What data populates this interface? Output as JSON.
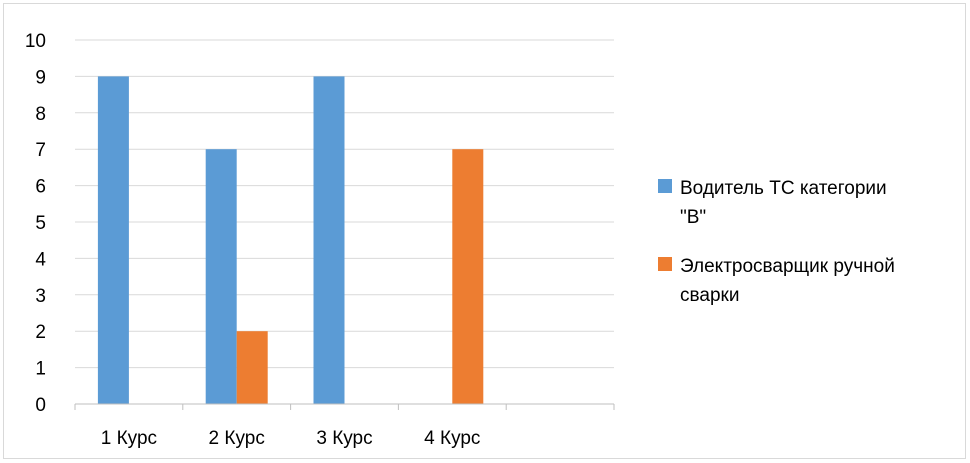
{
  "chart_data": {
    "type": "bar",
    "categories": [
      "1 Курс",
      "2 Курс",
      "3 Курс",
      "4 Курс",
      ""
    ],
    "series": [
      {
        "name": "Водитель ТС категории \"В\"",
        "values": [
          9,
          7,
          9,
          0,
          0
        ],
        "color": "#5b9bd5"
      },
      {
        "name": "Электросварщик ручной сварки",
        "values": [
          0,
          2,
          0,
          7,
          0
        ],
        "color": "#ed7d31"
      }
    ],
    "legend_lines": [
      [
        "Водитель ТС категории",
        "\"В\""
      ],
      [
        "Электросварщик ручной",
        "сварки"
      ]
    ],
    "ylim": [
      0,
      10
    ],
    "yticks": [
      0,
      1,
      2,
      3,
      4,
      5,
      6,
      7,
      8,
      9,
      10
    ],
    "grid": true,
    "legend_position": "right"
  },
  "colors": {
    "gridline": "#d9d9d9",
    "axis": "#bfbfbf",
    "border": "#d9d9d9"
  }
}
